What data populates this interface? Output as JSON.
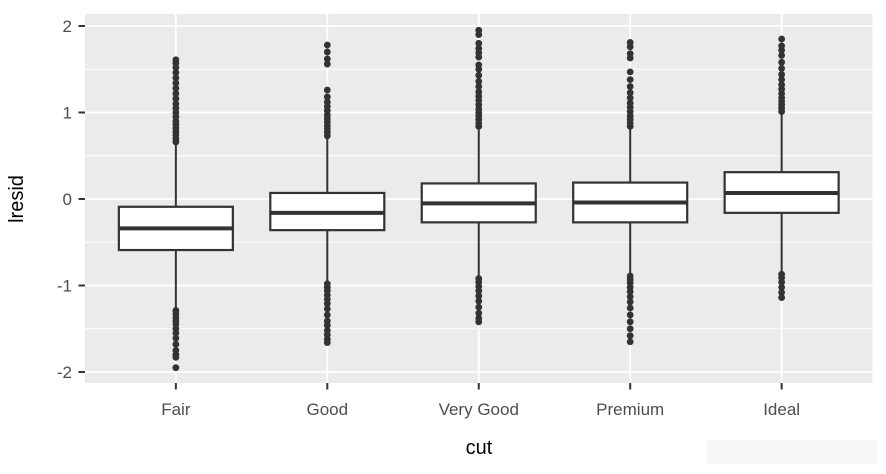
{
  "chart_data": {
    "type": "boxplot",
    "title": "",
    "xlabel": "cut",
    "ylabel": "lresid",
    "categories": [
      "Fair",
      "Good",
      "Very Good",
      "Premium",
      "Ideal"
    ],
    "y_ticks": [
      2,
      1,
      0,
      -1,
      -2
    ],
    "y_tick_labels": [
      "2",
      "1",
      "0",
      "-1",
      "-2"
    ],
    "y_minor_ticks": [
      1.5,
      0.5,
      -0.5,
      -1.5
    ],
    "ylim": [
      -2.14,
      2.14
    ],
    "grid": {
      "horizontal_major": true,
      "horizontal_minor": true,
      "vertical_major_at_categories": true
    },
    "legend": "none",
    "series": [
      {
        "category": "Fair",
        "q1": -0.59,
        "median": -0.34,
        "q3": -0.09,
        "whisker_low": -1.28,
        "whisker_high": 0.65,
        "outliers_high": [
          0.66,
          0.7,
          0.74,
          0.78,
          0.82,
          0.86,
          0.9,
          0.95,
          1.0,
          1.05,
          1.1,
          1.16,
          1.22,
          1.28,
          1.34,
          1.4,
          1.46,
          1.52,
          1.57,
          1.61
        ],
        "outliers_low": [
          -1.29,
          -1.33,
          -1.37,
          -1.41,
          -1.45,
          -1.5,
          -1.55,
          -1.61,
          -1.68,
          -1.75,
          -1.8,
          -1.83,
          -1.95
        ]
      },
      {
        "category": "Good",
        "q1": -0.36,
        "median": -0.16,
        "q3": 0.07,
        "whisker_low": -0.97,
        "whisker_high": 0.72,
        "outliers_high": [
          0.73,
          0.77,
          0.81,
          0.85,
          0.89,
          0.93,
          0.97,
          1.02,
          1.07,
          1.12,
          1.18,
          1.26,
          1.56,
          1.62,
          1.7,
          1.78
        ],
        "outliers_low": [
          -0.98,
          -1.02,
          -1.06,
          -1.11,
          -1.16,
          -1.21,
          -1.27,
          -1.34,
          -1.41,
          -1.46,
          -1.52,
          -1.57,
          -1.62,
          -1.66
        ]
      },
      {
        "category": "Very Good",
        "q1": -0.27,
        "median": -0.05,
        "q3": 0.18,
        "whisker_low": -0.91,
        "whisker_high": 0.83,
        "outliers_high": [
          0.84,
          0.88,
          0.92,
          0.96,
          1.0,
          1.04,
          1.09,
          1.14,
          1.19,
          1.24,
          1.3,
          1.36,
          1.43,
          1.5,
          1.55,
          1.64,
          1.69,
          1.74,
          1.8,
          1.9,
          1.95
        ],
        "outliers_low": [
          -0.92,
          -0.96,
          -1.01,
          -1.06,
          -1.12,
          -1.18,
          -1.25,
          -1.32,
          -1.38,
          -1.42
        ]
      },
      {
        "category": "Premium",
        "q1": -0.27,
        "median": -0.04,
        "q3": 0.19,
        "whisker_low": -0.88,
        "whisker_high": 0.83,
        "outliers_high": [
          0.84,
          0.88,
          0.92,
          0.96,
          1.01,
          1.06,
          1.11,
          1.17,
          1.23,
          1.3,
          1.38,
          1.47,
          1.63,
          1.68,
          1.76,
          1.81
        ],
        "outliers_low": [
          -0.89,
          -0.93,
          -0.97,
          -1.02,
          -1.07,
          -1.13,
          -1.19,
          -1.26,
          -1.34,
          -1.42,
          -1.5,
          -1.58,
          -1.65
        ]
      },
      {
        "category": "Ideal",
        "q1": -0.16,
        "median": 0.07,
        "q3": 0.31,
        "whisker_low": -0.86,
        "whisker_high": 1.0,
        "outliers_high": [
          1.01,
          1.05,
          1.09,
          1.13,
          1.17,
          1.22,
          1.27,
          1.32,
          1.38,
          1.44,
          1.51,
          1.58,
          1.66,
          1.72,
          1.77,
          1.85
        ],
        "outliers_low": [
          -0.87,
          -0.91,
          -0.96,
          -1.02,
          -1.08,
          -1.14
        ]
      }
    ],
    "colors": {
      "panel_bg": "#EBEBEB",
      "grid": "#FFFFFF",
      "box_stroke": "#333333",
      "box_fill": "#FFFFFF",
      "outlier": "#333333",
      "tick_mark": "#333333",
      "tick_label": "#4D4D4D",
      "axis_title": "#000000",
      "page_bg": "#FFFFFF"
    }
  }
}
